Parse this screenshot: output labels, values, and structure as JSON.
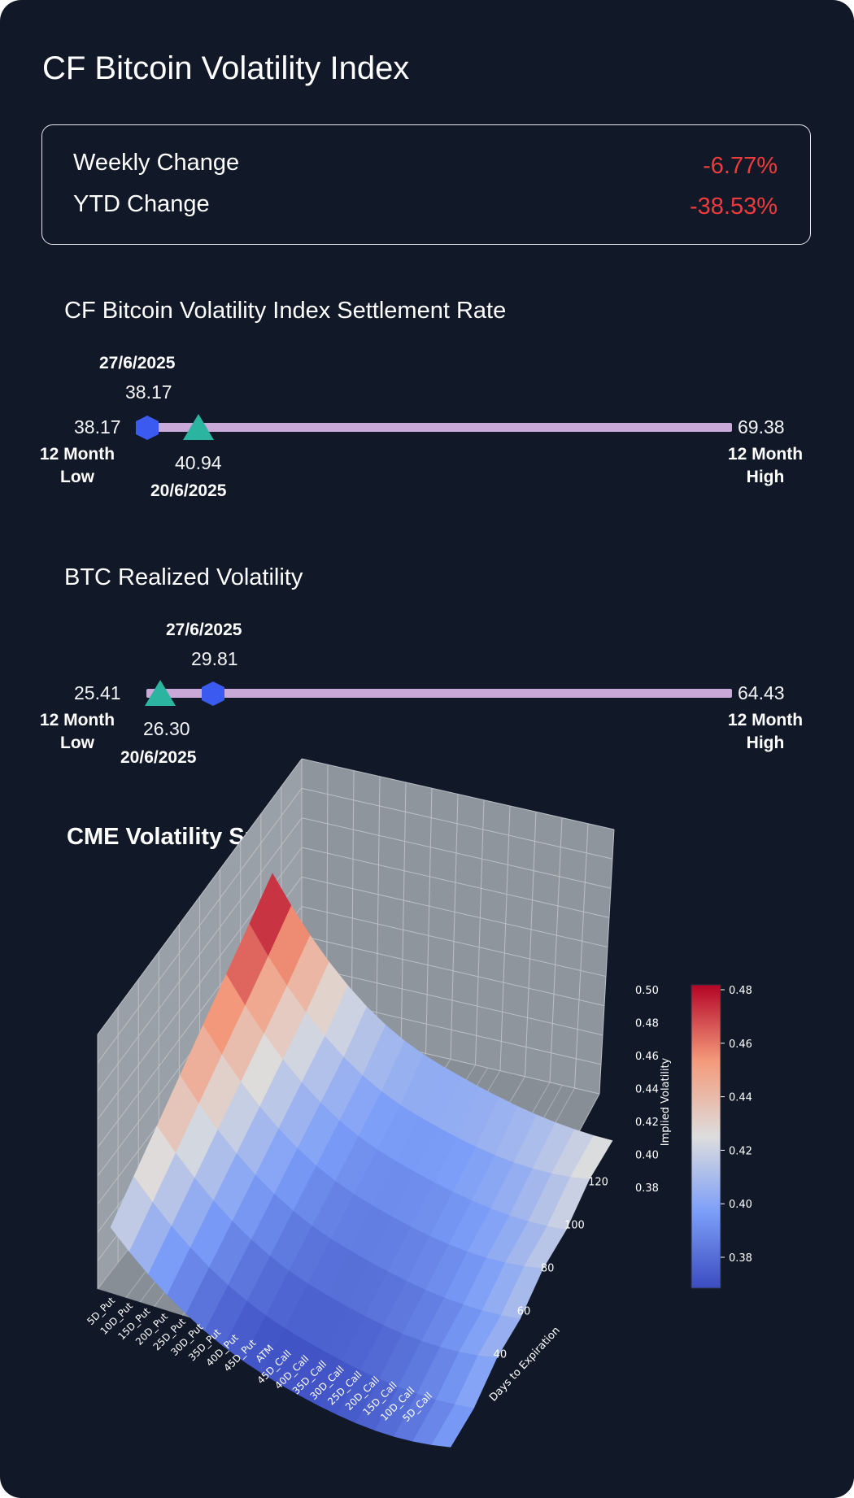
{
  "title": "CF Bitcoin Volatility Index",
  "changes": {
    "weekly": {
      "label": "Weekly Change",
      "value": "-6.77%"
    },
    "ytd": {
      "label": "YTD Change",
      "value": "-38.53%"
    }
  },
  "colors": {
    "background": "#111827",
    "negative": "#ef3b3b",
    "range_bar": "#c8a9d8",
    "current_marker": "#3b5bf0",
    "previous_marker": "#2bb5a0"
  },
  "range_sections": [
    {
      "title": "CF Bitcoin Volatility Index Settlement Rate",
      "low": {
        "value": "38.17",
        "label_line1": "12 Month",
        "label_line2": "Low"
      },
      "high": {
        "value": "69.38",
        "label_line1": "12 Month",
        "label_line2": "High"
      },
      "current": {
        "date": "27/6/2025",
        "value": "38.17",
        "shape": "hexagon"
      },
      "previous": {
        "date": "20/6/2025",
        "value": "40.94",
        "shape": "triangle"
      }
    },
    {
      "title": "BTC Realized Volatility",
      "low": {
        "value": "25.41",
        "label_line1": "12 Month",
        "label_line2": "Low"
      },
      "high": {
        "value": "64.43",
        "label_line1": "12 Month",
        "label_line2": "High"
      },
      "current": {
        "date": "27/6/2025",
        "value": "29.81",
        "shape": "hexagon"
      },
      "previous": {
        "date": "20/6/2025",
        "value": "26.30",
        "shape": "triangle"
      }
    }
  ],
  "surface_title": "CME Volatility Surface 27/6/25",
  "chart_data": {
    "type": "surface",
    "x_categories": [
      "5D_Put",
      "10D_Put",
      "15D_Put",
      "20D_Put",
      "25D_Put",
      "30D_Put",
      "35D_Put",
      "40D_Put",
      "45D_Put",
      "ATM",
      "45D_Call",
      "40D_Call",
      "35D_Call",
      "30D_Call",
      "25D_Call",
      "20D_Call",
      "15D_Call",
      "10D_Call",
      "5D_Call"
    ],
    "y_label": "Days to Expiration",
    "y_ticks": [
      "40",
      "60",
      "80",
      "100",
      "120"
    ],
    "z_label": "Implied Volatility",
    "z_ticks": [
      "0.38",
      "0.40",
      "0.42",
      "0.44",
      "0.46",
      "0.48",
      "0.50"
    ],
    "colorbar_ticks": [
      "0.38",
      "0.40",
      "0.42",
      "0.44",
      "0.46",
      "0.48"
    ],
    "colormap": "coolwarm",
    "days": [
      30,
      45,
      60,
      75,
      90,
      105,
      120,
      135
    ],
    "put_wing_iv": [
      0.42,
      0.43,
      0.44,
      0.45,
      0.46,
      0.47,
      0.48,
      0.49
    ],
    "atm_iv": [
      0.37,
      0.375,
      0.38,
      0.385,
      0.39,
      0.395,
      0.4,
      0.41
    ],
    "call_wing_iv": [
      0.4,
      0.4,
      0.41,
      0.41,
      0.42,
      0.42,
      0.43,
      0.43
    ]
  }
}
